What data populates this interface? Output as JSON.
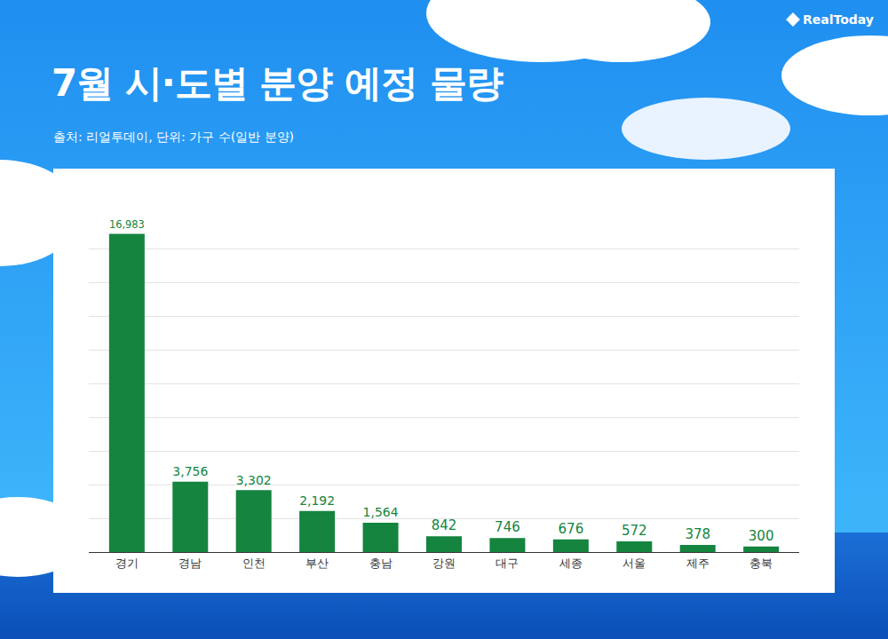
{
  "chart_data": {
    "type": "bar",
    "title": "7월 시·도별 분양 예정 물량",
    "subtitle": "출처: 리얼투데이, 단위: 가구 수(일반 분양)",
    "logo": "RealToday",
    "categories": [
      "경기",
      "경남",
      "인천",
      "부산",
      "충남",
      "강원",
      "대구",
      "세종",
      "서울",
      "제주",
      "충북"
    ],
    "values": [
      16983,
      3756,
      3302,
      2192,
      1564,
      842,
      746,
      676,
      572,
      378,
      300
    ],
    "value_labels": [
      "16,983",
      "3,756",
      "3,302",
      "2,192",
      "1,564",
      "842",
      "746",
      "676",
      "572",
      "378",
      "300"
    ],
    "color": "#14843f",
    "ylim": [
      0,
      18000
    ],
    "yticks": [
      0,
      1800,
      3600,
      5400,
      7200,
      9000,
      10800,
      12600,
      14400,
      16200,
      18000
    ],
    "grid": true,
    "data_labels": true,
    "tick_labels": "x"
  }
}
